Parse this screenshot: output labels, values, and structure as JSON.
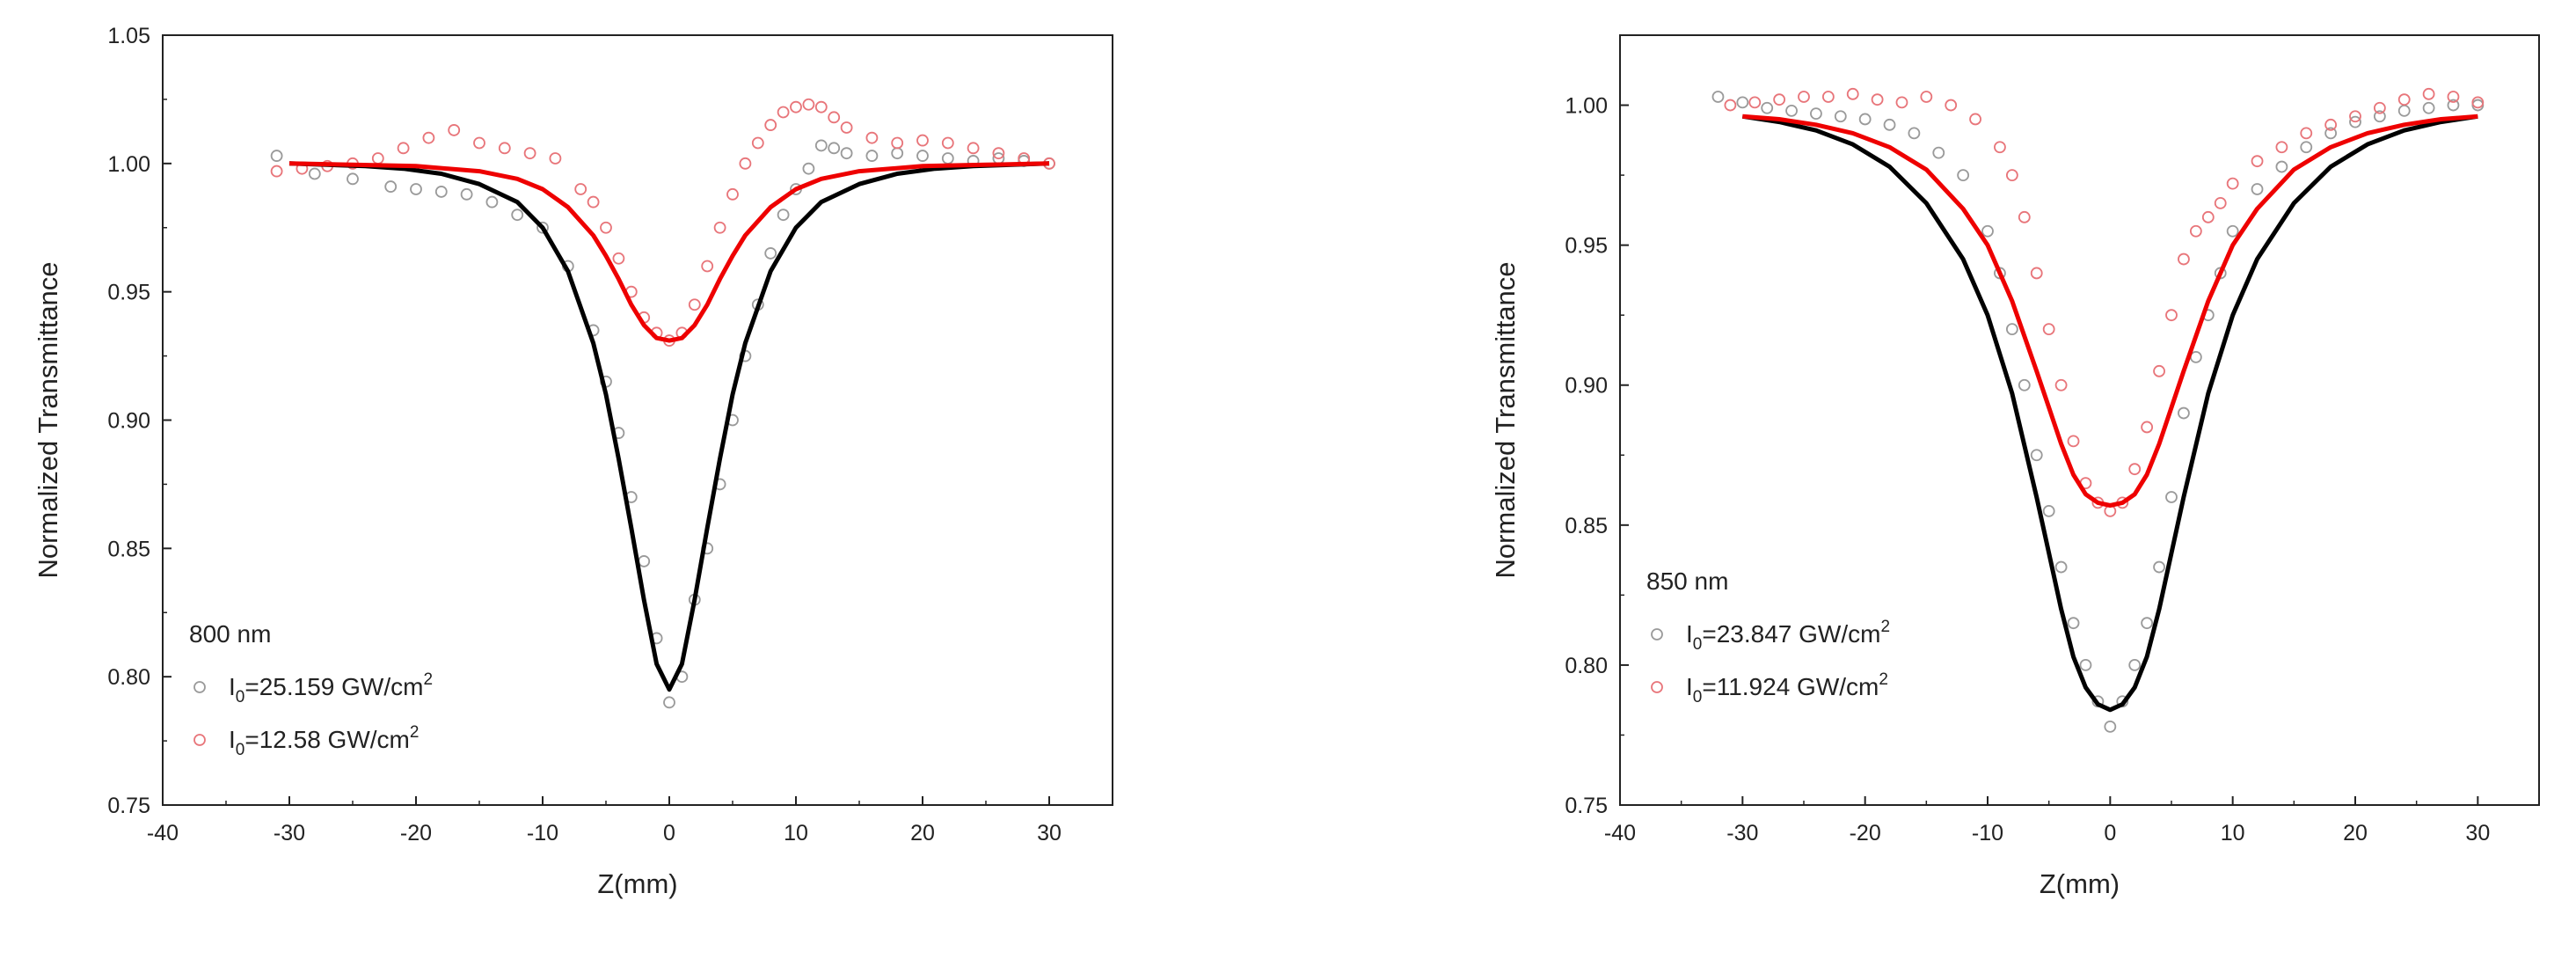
{
  "chart_data": [
    {
      "type": "scatter",
      "title": "",
      "xlabel": "Z(mm)",
      "ylabel": "Normalized Transmittance",
      "xlim": [
        -40,
        35
      ],
      "ylim": [
        0.75,
        1.05
      ],
      "xticks": [
        -40,
        -30,
        -20,
        -10,
        0,
        10,
        20,
        30
      ],
      "xtick_labels": [
        "-40",
        "-30",
        "-20",
        "-10",
        "0",
        "10",
        "20",
        "30"
      ],
      "yticks": [
        0.75,
        0.8,
        0.85,
        0.9,
        0.95,
        1.0,
        1.05
      ],
      "ytick_labels": [
        "0.75",
        "0.80",
        "0.85",
        "0.90",
        "0.95",
        "1.00",
        "1.05"
      ],
      "grid": false,
      "legend_title": "800 nm",
      "legend_position": "bottom-left",
      "series": [
        {
          "name": "I0=25.159 GW/cm2",
          "legend_main": "I",
          "legend_sub": "0",
          "legend_mid": "=25.159 GW/cm",
          "legend_sup": "2",
          "color": "#9a9a9a",
          "kind": "points",
          "x": [
            -31,
            -28,
            -25,
            -22,
            -20,
            -18,
            -16,
            -14,
            -12,
            -10,
            -8,
            -6,
            -5,
            -4,
            -3,
            -2,
            -1,
            0,
            1,
            2,
            3,
            4,
            5,
            6,
            7,
            8,
            9,
            10,
            11,
            12,
            13,
            14,
            16,
            18,
            20,
            22,
            24,
            26,
            28,
            30
          ],
          "y": [
            1.003,
            0.996,
            0.994,
            0.991,
            0.99,
            0.989,
            0.988,
            0.985,
            0.98,
            0.975,
            0.96,
            0.935,
            0.915,
            0.895,
            0.87,
            0.845,
            0.815,
            0.79,
            0.8,
            0.83,
            0.85,
            0.875,
            0.9,
            0.925,
            0.945,
            0.965,
            0.98,
            0.99,
            0.998,
            1.007,
            1.006,
            1.004,
            1.003,
            1.004,
            1.003,
            1.002,
            1.001,
            1.002,
            1.001,
            1.0
          ]
        },
        {
          "name": "I0=12.58 GW/cm2",
          "legend_main": "I",
          "legend_sub": "0",
          "legend_mid": "=12.58 GW/cm",
          "legend_sup": "2",
          "color": "#e8757a",
          "kind": "points",
          "x": [
            -31,
            -29,
            -27,
            -25,
            -23,
            -21,
            -19,
            -17,
            -15,
            -13,
            -11,
            -9,
            -7,
            -6,
            -5,
            -4,
            -3,
            -2,
            -1,
            0,
            1,
            2,
            3,
            4,
            5,
            6,
            7,
            8,
            9,
            10,
            11,
            12,
            13,
            14,
            16,
            18,
            20,
            22,
            24,
            26,
            28,
            30
          ],
          "y": [
            0.997,
            0.998,
            0.999,
            1.0,
            1.002,
            1.006,
            1.01,
            1.013,
            1.008,
            1.006,
            1.004,
            1.002,
            0.99,
            0.985,
            0.975,
            0.963,
            0.95,
            0.94,
            0.934,
            0.931,
            0.934,
            0.945,
            0.96,
            0.975,
            0.988,
            1.0,
            1.008,
            1.015,
            1.02,
            1.022,
            1.023,
            1.022,
            1.018,
            1.014,
            1.01,
            1.008,
            1.009,
            1.008,
            1.006,
            1.004,
            1.002,
            1.0
          ]
        },
        {
          "name": "fit 25.159",
          "color": "#000000",
          "kind": "fit",
          "x": [
            -30,
            -27,
            -24,
            -21,
            -18,
            -15,
            -12,
            -10,
            -8,
            -6,
            -5,
            -4,
            -3,
            -2,
            -1,
            0,
            1,
            2,
            3,
            4,
            5,
            6,
            8,
            10,
            12,
            15,
            18,
            21,
            24,
            27,
            30
          ],
          "y": [
            1.0,
            0.9995,
            0.999,
            0.998,
            0.996,
            0.992,
            0.985,
            0.975,
            0.958,
            0.93,
            0.91,
            0.885,
            0.858,
            0.83,
            0.805,
            0.795,
            0.805,
            0.83,
            0.858,
            0.885,
            0.91,
            0.93,
            0.958,
            0.975,
            0.985,
            0.992,
            0.996,
            0.998,
            0.999,
            0.9995,
            1.0
          ]
        },
        {
          "name": "fit 12.58",
          "color": "#ee0000",
          "kind": "fit",
          "x": [
            -30,
            -25,
            -20,
            -15,
            -12,
            -10,
            -8,
            -6,
            -5,
            -4,
            -3,
            -2,
            -1,
            0,
            1,
            2,
            3,
            4,
            5,
            6,
            8,
            10,
            12,
            15,
            20,
            25,
            30
          ],
          "y": [
            1.0,
            0.9995,
            0.999,
            0.997,
            0.994,
            0.99,
            0.983,
            0.972,
            0.964,
            0.955,
            0.945,
            0.937,
            0.932,
            0.931,
            0.932,
            0.937,
            0.945,
            0.955,
            0.964,
            0.972,
            0.983,
            0.99,
            0.994,
            0.997,
            0.999,
            0.9995,
            1.0
          ]
        }
      ]
    },
    {
      "type": "scatter",
      "title": "",
      "xlabel": "Z(mm)",
      "ylabel": "Normalized Transmittance",
      "xlim": [
        -40,
        35
      ],
      "ylim": [
        0.75,
        1.025
      ],
      "xticks": [
        -40,
        -30,
        -20,
        -10,
        0,
        10,
        20,
        30
      ],
      "xtick_labels": [
        "-40",
        "-30",
        "-20",
        "-10",
        "0",
        "10",
        "20",
        "30"
      ],
      "yticks": [
        0.75,
        0.8,
        0.85,
        0.9,
        0.95,
        1.0
      ],
      "ytick_labels": [
        "0.75",
        "0.80",
        "0.85",
        "0.90",
        "0.95",
        "1.00"
      ],
      "grid": false,
      "legend_title": "850 nm",
      "legend_position": "bottom-left",
      "series": [
        {
          "name": "I0=23.847 GW/cm2",
          "legend_main": "I",
          "legend_sub": "0",
          "legend_mid": "=23.847 GW/cm",
          "legend_sup": "2",
          "color": "#9a9a9a",
          "kind": "points",
          "x": [
            -32,
            -30,
            -28,
            -26,
            -24,
            -22,
            -20,
            -18,
            -16,
            -14,
            -12,
            -10,
            -9,
            -8,
            -7,
            -6,
            -5,
            -4,
            -3,
            -2,
            -1,
            0,
            1,
            2,
            3,
            4,
            5,
            6,
            7,
            8,
            9,
            10,
            12,
            14,
            16,
            18,
            20,
            22,
            24,
            26,
            28,
            30
          ],
          "y": [
            1.003,
            1.001,
            0.999,
            0.998,
            0.997,
            0.996,
            0.995,
            0.993,
            0.99,
            0.983,
            0.975,
            0.955,
            0.94,
            0.92,
            0.9,
            0.875,
            0.855,
            0.835,
            0.815,
            0.8,
            0.787,
            0.778,
            0.787,
            0.8,
            0.815,
            0.835,
            0.86,
            0.89,
            0.91,
            0.925,
            0.94,
            0.955,
            0.97,
            0.978,
            0.985,
            0.99,
            0.994,
            0.996,
            0.998,
            0.999,
            1.0,
            1.0
          ]
        },
        {
          "name": "I0=11.924 GW/cm2",
          "legend_main": "I",
          "legend_sub": "0",
          "legend_mid": "=11.924 GW/cm",
          "legend_sup": "2",
          "color": "#e8757a",
          "kind": "points",
          "x": [
            -31,
            -29,
            -27,
            -25,
            -23,
            -21,
            -19,
            -17,
            -15,
            -13,
            -11,
            -9,
            -8,
            -7,
            -6,
            -5,
            -4,
            -3,
            -2,
            -1,
            0,
            1,
            2,
            3,
            4,
            5,
            6,
            7,
            8,
            9,
            10,
            12,
            14,
            16,
            18,
            20,
            22,
            24,
            26,
            28,
            30
          ],
          "y": [
            1.0,
            1.001,
            1.002,
            1.003,
            1.003,
            1.004,
            1.002,
            1.001,
            1.003,
            1.0,
            0.995,
            0.985,
            0.975,
            0.96,
            0.94,
            0.92,
            0.9,
            0.88,
            0.865,
            0.858,
            0.855,
            0.858,
            0.87,
            0.885,
            0.905,
            0.925,
            0.945,
            0.955,
            0.96,
            0.965,
            0.972,
            0.98,
            0.985,
            0.99,
            0.993,
            0.996,
            0.999,
            1.002,
            1.004,
            1.003,
            1.001
          ]
        },
        {
          "name": "fit 23.847",
          "color": "#000000",
          "kind": "fit",
          "x": [
            -30,
            -27,
            -24,
            -21,
            -18,
            -15,
            -12,
            -10,
            -8,
            -6,
            -5,
            -4,
            -3,
            -2,
            -1,
            0,
            1,
            2,
            3,
            4,
            5,
            6,
            8,
            10,
            12,
            15,
            18,
            21,
            24,
            27,
            30
          ],
          "y": [
            0.996,
            0.994,
            0.991,
            0.986,
            0.978,
            0.965,
            0.945,
            0.925,
            0.897,
            0.86,
            0.84,
            0.82,
            0.803,
            0.792,
            0.786,
            0.784,
            0.786,
            0.792,
            0.803,
            0.82,
            0.84,
            0.86,
            0.897,
            0.925,
            0.945,
            0.965,
            0.978,
            0.986,
            0.991,
            0.994,
            0.996
          ]
        },
        {
          "name": "fit 11.924",
          "color": "#ee0000",
          "kind": "fit",
          "x": [
            -30,
            -27,
            -24,
            -21,
            -18,
            -15,
            -12,
            -10,
            -8,
            -6,
            -5,
            -4,
            -3,
            -2,
            -1,
            0,
            1,
            2,
            3,
            4,
            5,
            6,
            8,
            10,
            12,
            15,
            18,
            21,
            24,
            27,
            30
          ],
          "y": [
            0.996,
            0.995,
            0.993,
            0.99,
            0.985,
            0.977,
            0.963,
            0.95,
            0.93,
            0.905,
            0.892,
            0.879,
            0.868,
            0.861,
            0.858,
            0.857,
            0.858,
            0.861,
            0.868,
            0.879,
            0.892,
            0.905,
            0.93,
            0.95,
            0.963,
            0.977,
            0.985,
            0.99,
            0.993,
            0.995,
            0.996
          ]
        }
      ]
    }
  ]
}
